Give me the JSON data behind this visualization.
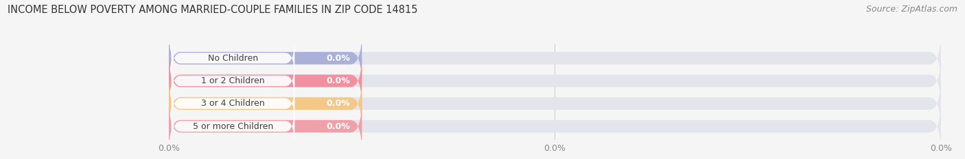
{
  "title": "INCOME BELOW POVERTY AMONG MARRIED-COUPLE FAMILIES IN ZIP CODE 14815",
  "source": "Source: ZipAtlas.com",
  "categories": [
    "No Children",
    "1 or 2 Children",
    "3 or 4 Children",
    "5 or more Children"
  ],
  "values": [
    0.0,
    0.0,
    0.0,
    0.0
  ],
  "bar_colors": [
    "#aab0d8",
    "#f090a0",
    "#f5c888",
    "#f0a0a8"
  ],
  "bg_color": "#f5f5f5",
  "bar_bg_color": "#e0e0e8",
  "title_fontsize": 10.5,
  "source_fontsize": 9,
  "tick_fontsize": 9,
  "cat_label_fontsize": 9,
  "val_label_fontsize": 9
}
